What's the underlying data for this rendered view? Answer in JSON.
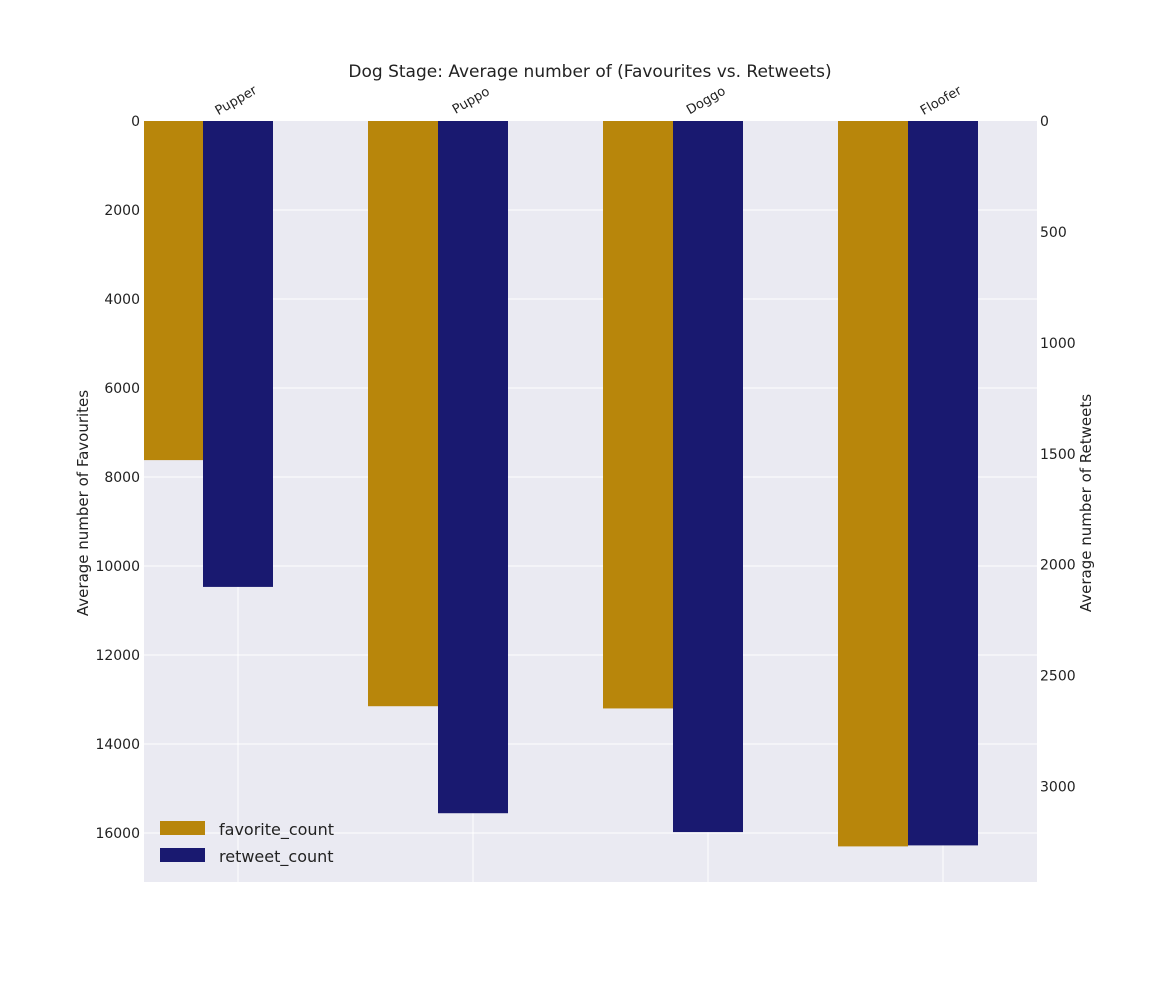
{
  "chart_data": {
    "type": "bar",
    "title": "Dog Stage: Average number of (Favourites vs. Retweets)",
    "categories": [
      "Pupper",
      "Puppo",
      "Doggo",
      "Floofer"
    ],
    "series": [
      {
        "name": "favorite_count",
        "axis": "left",
        "color": "#b8860b",
        "values": [
          7620,
          13150,
          13200,
          16300
        ]
      },
      {
        "name": "retweet_count",
        "axis": "right",
        "color": "#191970",
        "values": [
          2100,
          3120,
          3205,
          3265
        ]
      }
    ],
    "ylabel_left": "Average number of Favourites",
    "ylabel_right": "Average number of Retweets",
    "ylim_left": [
      0,
      17100
    ],
    "ylim_right": [
      0,
      3430
    ],
    "yticks_left": [
      0,
      2000,
      4000,
      6000,
      8000,
      10000,
      12000,
      14000,
      16000
    ],
    "yticks_right": [
      0,
      500,
      1000,
      1500,
      2000,
      2500,
      3000
    ],
    "y_inverted": true,
    "x_axis_position": "top",
    "grid": true,
    "legend": "bottom-left",
    "background_color": "#eaeaf2"
  }
}
